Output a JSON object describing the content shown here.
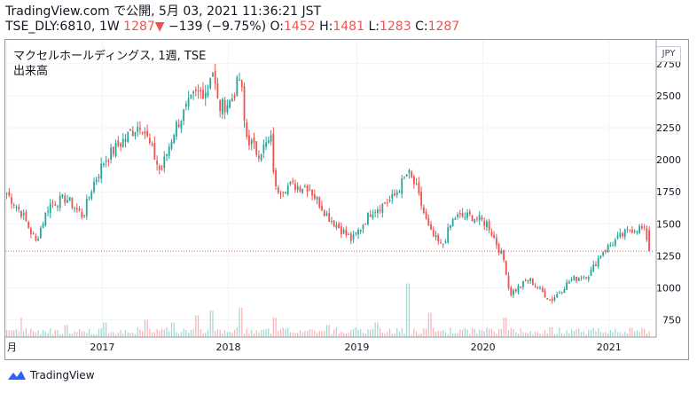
{
  "header": {
    "line1": "TradingView.com で公開, 5月 03, 2021 11:36:21 JST",
    "symbol": "TSE_DLY:6810, 1W",
    "last": "1287",
    "change_arrow": "▼",
    "change": "−139 (−9.75%)",
    "o_label": "O:",
    "o_value": "1452",
    "h_label": "H:",
    "h_value": "1481",
    "l_label": "L:",
    "l_value": "1283",
    "c_label": "C:",
    "c_value": "1287"
  },
  "legend": {
    "title": "マクセルホールディングス, 1週, TSE",
    "volume_label": "出来高"
  },
  "currency_badge": "JPY",
  "brand": {
    "name": "TradingView",
    "icon": "tradingview-logo-icon"
  },
  "colors": {
    "up": "#26a69a",
    "down": "#ef5350",
    "grid": "#f0f3fa",
    "priceline": "#ef5350"
  },
  "chart_data": {
    "type": "candlestick",
    "title": "マクセルホールディングス, 1週, TSE",
    "x_tick_labels": [
      "月",
      "2017",
      "2018",
      "2019",
      "2020",
      "2021"
    ],
    "x_tick_dates": [
      "2016-04-01",
      "2017-01-02",
      "2018-01-01",
      "2019-01-07",
      "2020-01-06",
      "2021-01-04"
    ],
    "y_ticks": [
      750,
      1000,
      1250,
      1500,
      1750,
      2000,
      2250,
      2500,
      2750
    ],
    "ylim": [
      630,
      2880
    ],
    "last_price_line": 1287,
    "grid": true,
    "series": [
      {
        "name": "price",
        "points": [
          [
            "2016-04-01",
            1740
          ],
          [
            "2016-05-15",
            1580
          ],
          [
            "2016-06-24",
            1360
          ],
          [
            "2016-08-01",
            1650
          ],
          [
            "2016-09-20",
            1700
          ],
          [
            "2016-11-07",
            1560
          ],
          [
            "2016-12-05",
            1800
          ],
          [
            "2017-01-09",
            2000
          ],
          [
            "2017-03-13",
            2180
          ],
          [
            "2017-04-24",
            2290
          ],
          [
            "2017-06-19",
            1900
          ],
          [
            "2017-07-31",
            2250
          ],
          [
            "2017-09-25",
            2500
          ],
          [
            "2017-11-06",
            2560
          ],
          [
            "2017-11-13",
            2760
          ],
          [
            "2017-12-04",
            2400
          ],
          [
            "2018-01-08",
            2460
          ],
          [
            "2018-02-05",
            2650
          ],
          [
            "2018-02-19",
            2200
          ],
          [
            "2018-03-26",
            2050
          ],
          [
            "2018-05-07",
            2160
          ],
          [
            "2018-05-14",
            1760
          ],
          [
            "2018-06-25",
            1800
          ],
          [
            "2018-08-20",
            1790
          ],
          [
            "2018-10-15",
            1560
          ],
          [
            "2018-12-24",
            1370
          ],
          [
            "2019-02-18",
            1600
          ],
          [
            "2019-04-22",
            1700
          ],
          [
            "2019-06-03",
            1900
          ],
          [
            "2019-06-24",
            1800
          ],
          [
            "2019-08-05",
            1440
          ],
          [
            "2019-09-09",
            1320
          ],
          [
            "2019-10-14",
            1550
          ],
          [
            "2019-12-02",
            1560
          ],
          [
            "2020-01-20",
            1500
          ],
          [
            "2020-03-09",
            1200
          ],
          [
            "2020-03-23",
            950
          ],
          [
            "2020-05-18",
            1070
          ],
          [
            "2020-07-20",
            900
          ],
          [
            "2020-09-14",
            1060
          ],
          [
            "2020-11-09",
            1110
          ],
          [
            "2020-12-14",
            1280
          ],
          [
            "2021-02-01",
            1390
          ],
          [
            "2021-03-08",
            1460
          ],
          [
            "2021-04-05",
            1470
          ],
          [
            "2021-04-19",
            1430
          ],
          [
            "2021-05-03",
            1287
          ]
        ]
      },
      {
        "name": "volume",
        "points": [
          [
            "2016-05-15",
            40
          ],
          [
            "2016-09-20",
            25
          ],
          [
            "2017-01-09",
            30
          ],
          [
            "2017-05-08",
            35
          ],
          [
            "2017-07-24",
            30
          ],
          [
            "2017-10-02",
            45
          ],
          [
            "2017-11-13",
            55
          ],
          [
            "2018-02-05",
            60
          ],
          [
            "2018-05-14",
            40
          ],
          [
            "2018-10-15",
            25
          ],
          [
            "2019-03-04",
            30
          ],
          [
            "2019-06-03",
            110
          ],
          [
            "2019-08-05",
            50
          ],
          [
            "2020-03-09",
            40
          ],
          [
            "2020-07-20",
            20
          ],
          [
            "2020-11-09",
            15
          ],
          [
            "2021-02-01",
            10
          ],
          [
            "2021-05-03",
            12
          ]
        ]
      }
    ]
  }
}
